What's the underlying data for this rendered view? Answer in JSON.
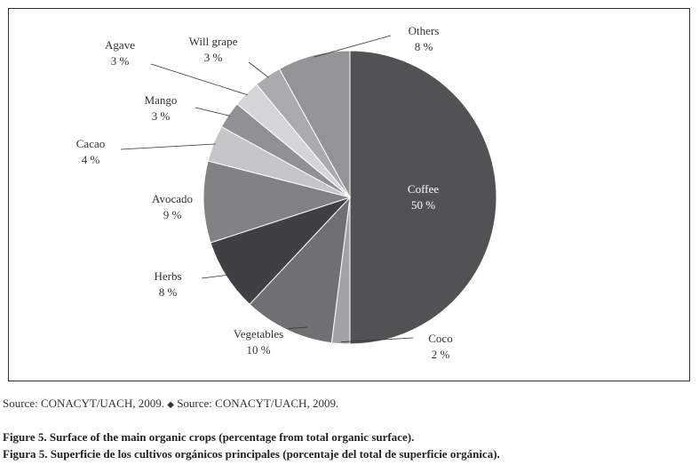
{
  "chart_data": {
    "type": "pie",
    "title": "",
    "slices": [
      {
        "label": "Coffee",
        "value_label": "50 %",
        "value": 50,
        "color": "#505254"
      },
      {
        "label": "Coco",
        "value_label": "2 %",
        "value": 2,
        "color": "#a1a3a5"
      },
      {
        "label": "Vegetables",
        "value_label": "10 %",
        "value": 10,
        "color": "#6e7072"
      },
      {
        "label": "Herbs",
        "value_label": "8 %",
        "value": 8,
        "color": "#3f4042"
      },
      {
        "label": "Avocado",
        "value_label": "9 %",
        "value": 9,
        "color": "#808284"
      },
      {
        "label": "Cacao",
        "value_label": "4 %",
        "value": 4,
        "color": "#c4c6c8"
      },
      {
        "label": "Mango",
        "value_label": "3 %",
        "value": 3,
        "color": "#8f9193"
      },
      {
        "label": "Agave",
        "value_label": "3 %",
        "value": 3,
        "color": "#d3d5d7"
      },
      {
        "label": "Will grape",
        "value_label": "3 %",
        "value": 3,
        "color": "#a9abad"
      },
      {
        "label": "Others",
        "value_label": "8 %",
        "value": 8,
        "color": "#929496"
      }
    ]
  },
  "source": {
    "part1": "Source: CONACYT/UACH, 2009.",
    "separator": "◆",
    "part2": "Source: CONACYT/UACH, 2009."
  },
  "caption": {
    "english": "Figure 5. Surface of the main organic crops (percentage from total organic surface).",
    "spanish": "Figura 5. Superficie de los cultivos orgánicos principales (porcentaje del total de superficie orgánica)."
  }
}
